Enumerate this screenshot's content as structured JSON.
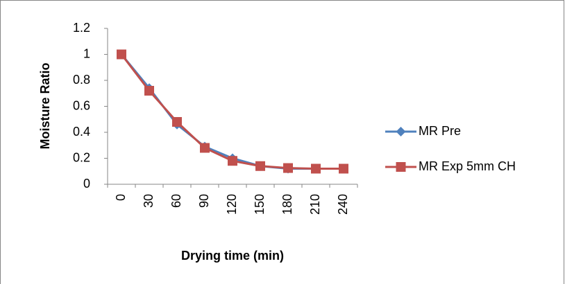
{
  "chart_data": {
    "type": "line",
    "x_label": "Drying time (min)",
    "y_label": "Moisture Ratio",
    "categories": [
      "0",
      "30",
      "60",
      "90",
      "120",
      "150",
      "180",
      "210",
      "240"
    ],
    "series": [
      {
        "name": "MR Pre",
        "color": "#4f81bd",
        "marker": "diamond",
        "values": [
          1,
          0.74,
          0.46,
          0.29,
          0.2,
          0.14,
          0.12,
          0.12,
          0.12
        ]
      },
      {
        "name": "MR Exp 5mm CH",
        "color": "#c0504d",
        "marker": "square",
        "values": [
          1,
          0.72,
          0.48,
          0.28,
          0.18,
          0.14,
          0.125,
          0.12,
          0.12
        ]
      }
    ],
    "ylim": [
      0,
      1.2
    ],
    "yticks": [
      0,
      0.2,
      0.4,
      0.6,
      0.8,
      1,
      1.2
    ],
    "grid": false,
    "legend": "right"
  }
}
